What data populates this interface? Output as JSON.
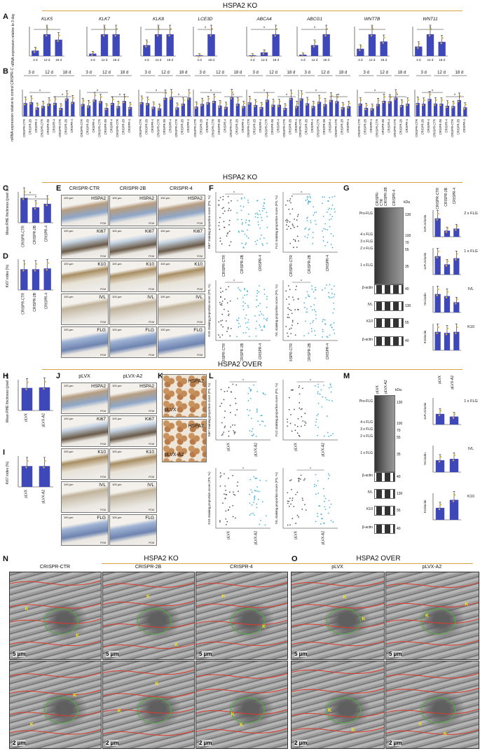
{
  "sections": {
    "ko_top": "HSPA2 KO",
    "ko_mid": "HSPA2 KO",
    "over": "HSPA2 OVER",
    "em_ko": "HSPA2 KO",
    "em_over": "HSPA2 OVER"
  },
  "panels": {
    "A": "A",
    "B": "B",
    "C": "C",
    "D": "D",
    "E": "E",
    "F": "F",
    "G": "G",
    "H": "H",
    "I": "I",
    "J": "J",
    "K": "K",
    "L": "L",
    "M": "M",
    "N": "N",
    "O": "O"
  },
  "chart_data": [
    {
      "type": "bar",
      "id": "A",
      "ylabel": "mRNA expression relative to 3 day",
      "genes": [
        {
          "name": "KLK5",
          "categories": [
            "3 d",
            "12 d",
            "18 d"
          ],
          "values": [
            1,
            4,
            3
          ]
        },
        {
          "name": "KLK7",
          "categories": [
            "3 d",
            "12 d",
            "18 d"
          ],
          "values": [
            1,
            9,
            9
          ]
        },
        {
          "name": "KLK8",
          "categories": [
            "3 d",
            "12 d",
            "18 d"
          ],
          "values": [
            1,
            2,
            2
          ]
        },
        {
          "name": "LCE3D",
          "categories": [
            "3 d",
            "18 d"
          ],
          "values": [
            1,
            1200
          ]
        },
        {
          "name": "ABCA4",
          "categories": [
            "3 d",
            "12 d",
            "18 d"
          ],
          "values": [
            1,
            5,
            30
          ]
        },
        {
          "name": "ABCG1",
          "categories": [
            "3 d",
            "12 d",
            "18 d"
          ],
          "values": [
            1,
            8,
            16
          ]
        },
        {
          "name": "WNT7B",
          "categories": [
            "3 d",
            "12 d",
            "18 d"
          ],
          "values": [
            1,
            3,
            2
          ]
        },
        {
          "name": "WNT11",
          "categories": [
            "3 d",
            "12 d",
            "18 d"
          ],
          "values": [
            1,
            2.3,
            1.5
          ]
        }
      ]
    },
    {
      "type": "bar",
      "id": "B",
      "ylabel": "mRNA expression relative to control CRISPR-CTR",
      "groups": [
        "3 d",
        "12 d",
        "18 d"
      ],
      "categories": [
        "CRISPR-CTR",
        "CRISPR-2B",
        "CRISPR-4"
      ]
    },
    {
      "type": "bar",
      "id": "C",
      "ylabel": "Mean RHE thickness (pixel units)",
      "categories": [
        "CRISPR-CTR",
        "CRISPR-2B",
        "CRISPR-4"
      ],
      "values": [
        210,
        130,
        160
      ]
    },
    {
      "type": "bar",
      "id": "D",
      "ylabel": "Ki67 index (%)",
      "categories": [
        "CRISPR-CTR",
        "CRISPR-2B",
        "CRISPR-4"
      ],
      "values": [
        27,
        27,
        28
      ]
    },
    {
      "type": "scatter",
      "id": "F",
      "panels": [
        {
          "ylabel": "Ki67 staining proportion score (PS, %)",
          "categories": [
            "CRISPR-CTR",
            "CRISPR-2B",
            "CRISPR-4"
          ]
        },
        {
          "ylabel": "FLG staining proportion score (PS, %)",
          "categories": [
            "CRISPR-CTR",
            "CRISPR-2B",
            "CRISPR-4"
          ]
        },
        {
          "ylabel": "K10 staining proportion score (PS, %)",
          "categories": [
            "CRISPR-CTR",
            "CRISPR-2B",
            "CRISPR-4"
          ]
        },
        {
          "ylabel": "IVL staining proportion score (PS, %)",
          "categories": [
            "CRISPR-CTR",
            "CRISPR-2B",
            "CRISPR-4"
          ]
        }
      ]
    },
    {
      "type": "bar",
      "id": "G",
      "categories": [
        "CRISPR-CTR",
        "CRISPR-2B",
        "CRISPR-4"
      ],
      "panels": [
        {
          "ylabel": "2xFLG/actin",
          "label": "2 x FLG",
          "values": [
            0.9,
            0.3,
            0.4
          ]
        },
        {
          "ylabel": "1xFLG/actin",
          "label": "1 x FLG",
          "values": [
            0.9,
            0.5,
            0.8
          ]
        },
        {
          "ylabel": "IVL/actin",
          "label": "IVL",
          "values": [
            0.9,
            0.8,
            0.5
          ]
        },
        {
          "ylabel": "K10/actin",
          "label": "K10",
          "values": [
            0.9,
            0.85,
            0.9
          ]
        }
      ]
    },
    {
      "type": "bar",
      "id": "H",
      "ylabel": "Mean RHE thickness (pixel units)",
      "categories": [
        "pLVX",
        "pLVX-A2"
      ],
      "values": [
        220,
        225
      ]
    },
    {
      "type": "bar",
      "id": "I",
      "ylabel": "Ki67 index (%)",
      "categories": [
        "pLVX",
        "pLVX-A2"
      ],
      "values": [
        27,
        27
      ]
    },
    {
      "type": "scatter",
      "id": "L",
      "panels": [
        {
          "ylabel": "Ki67 staining proportion score (PS, %)",
          "categories": [
            "pLVX",
            "pLVX-A2"
          ]
        },
        {
          "ylabel": "FLG staining proportion score (PS, %)",
          "categories": [
            "pLVX",
            "pLVX-A2"
          ]
        },
        {
          "ylabel": "K10 staining proportion score (PS, %)",
          "categories": [
            "pLVX",
            "pLVX-A2"
          ]
        },
        {
          "ylabel": "IVL staining proportion score (PS, %)",
          "categories": [
            "pLVX",
            "pLVX-A2"
          ]
        }
      ]
    },
    {
      "type": "bar",
      "id": "M",
      "categories": [
        "pLVX",
        "pLVX-A2"
      ],
      "panels": [
        {
          "ylabel": "1xFLG/actin",
          "label": "1 x FLG",
          "values": [
            0.8,
            0.6
          ]
        },
        {
          "ylabel": "IVL/actin",
          "label": "IVL",
          "values": [
            0.9,
            1.0
          ]
        },
        {
          "ylabel": "K10/actin",
          "label": "K10",
          "values": [
            0.9,
            1.5
          ]
        }
      ]
    }
  ],
  "E": {
    "cols": [
      "CRISPR-CTR",
      "CRISPR-2B",
      "CRISPR-4"
    ],
    "rows": [
      "HSPA2",
      "Ki67",
      "K10",
      "IVL",
      "FLG"
    ],
    "scale": "100 µm",
    "pcm": "PCM"
  },
  "J": {
    "cols": [
      "pLVX",
      "pLVX-A2"
    ],
    "rows": [
      "HSPA2",
      "Ki67",
      "K10",
      "IVL",
      "FLG"
    ],
    "scale": "100 µm",
    "pcm": "PCM"
  },
  "K": {
    "labels": [
      "HSPA2",
      "pLVX",
      "HSPA2",
      "pLVX-A2"
    ],
    "scale": "100 µm"
  },
  "G_blot": {
    "labels": [
      "Pro-FLG",
      "4 x FLG",
      "3 x FLG",
      "2 x FLG",
      "1 x FLG",
      "β-actin",
      "IVL",
      "K10",
      "β-actin"
    ],
    "kda_title": "kDa",
    "kda": [
      "130",
      "100",
      "70",
      "55",
      "35",
      "40",
      "130",
      "55",
      "40"
    ],
    "cols": [
      "CRISPR-CTR",
      "CRISPR-2B",
      "CRISPR-4"
    ]
  },
  "M_blot": {
    "labels": [
      "Pro-FLG",
      "4 x FLG",
      "3 x FLG",
      "2 x FLG",
      "1 x FLG",
      "β-actin",
      "IVL",
      "K10",
      "β-actin"
    ],
    "kda_title": "kDa",
    "kda": [
      "130",
      "100",
      "70",
      "55",
      "35",
      "40",
      "130",
      "55",
      "40"
    ],
    "cols": [
      "pLVX",
      "pLVX-A2"
    ]
  },
  "N": {
    "cols": [
      "CRISPR-CTR",
      "CRISPR-2B",
      "CRISPR-4"
    ],
    "scale_top": "5 µm",
    "scale_bottom": "2 µm",
    "k": "K"
  },
  "O": {
    "cols": [
      "pLVX",
      "pLVX-A2"
    ],
    "scale_top": "5 µm",
    "scale_bottom": "2 µm",
    "k": "K"
  },
  "sig": {
    "star": "*",
    "hash": "#"
  }
}
